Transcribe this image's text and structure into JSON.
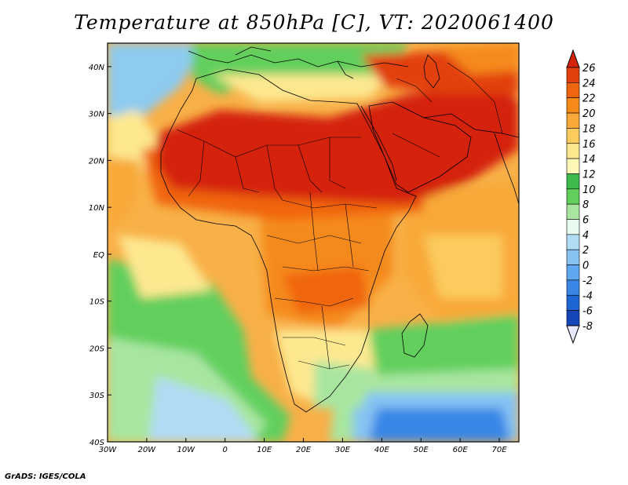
{
  "title": "Temperature at 850hPa [C], VT: 2020061400",
  "credit": "GrADS: IGES/COLA",
  "map": {
    "lon_range": [
      -30,
      75
    ],
    "lat_range": [
      -40,
      45
    ],
    "lon_ticks": [
      {
        "value": -30,
        "label": "30W"
      },
      {
        "value": -20,
        "label": "20W"
      },
      {
        "value": -10,
        "label": "10W"
      },
      {
        "value": 0,
        "label": "0"
      },
      {
        "value": 10,
        "label": "10E"
      },
      {
        "value": 20,
        "label": "20E"
      },
      {
        "value": 30,
        "label": "30E"
      },
      {
        "value": 40,
        "label": "40E"
      },
      {
        "value": 50,
        "label": "50E"
      },
      {
        "value": 60,
        "label": "60E"
      },
      {
        "value": 70,
        "label": "70E"
      }
    ],
    "lat_ticks": [
      {
        "value": 40,
        "label": "40N"
      },
      {
        "value": 30,
        "label": "30N"
      },
      {
        "value": 20,
        "label": "20N"
      },
      {
        "value": 10,
        "label": "10N"
      },
      {
        "value": 0,
        "label": "EQ"
      },
      {
        "value": -10,
        "label": "10S"
      },
      {
        "value": -20,
        "label": "20S"
      },
      {
        "value": -30,
        "label": "30S"
      },
      {
        "value": -40,
        "label": "40S"
      }
    ]
  },
  "colorbar": {
    "labels": [
      "26",
      "24",
      "22",
      "20",
      "18",
      "16",
      "14",
      "12",
      "10",
      "8",
      "6",
      "4",
      "2",
      "0",
      "-2",
      "-4",
      "-6",
      "-8"
    ],
    "colors": [
      "#e2400c",
      "#f0650f",
      "#f58a1a",
      "#f8a938",
      "#fccb5e",
      "#fde890",
      "#fdf8b8",
      "#3cba4a",
      "#62cf5d",
      "#a8e6a0",
      "#e8fbf0",
      "#b0dcf5",
      "#86c3f3",
      "#5fa8ef",
      "#3986e6",
      "#1e66d4",
      "#1545b6",
      "#0c2a86"
    ],
    "top_color": "#d4240a",
    "bottom_color": "#e8e8ff"
  }
}
